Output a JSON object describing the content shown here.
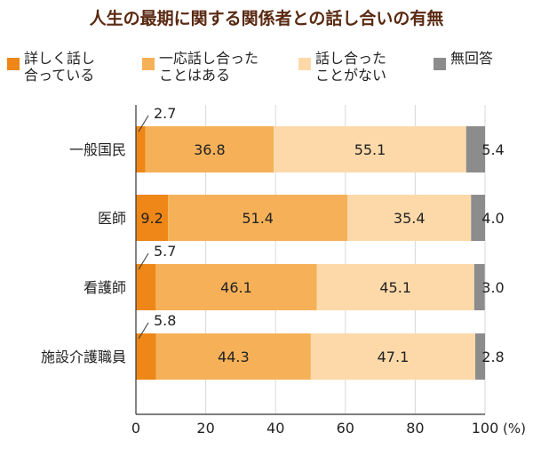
{
  "chart_data": {
    "type": "bar",
    "orientation": "horizontal",
    "stacked": true,
    "title": "人生の最期に関する関係者との話し合いの有無",
    "xlabel": "",
    "ylabel": "",
    "x_unit": "(%)",
    "xlim": [
      0,
      100
    ],
    "x_ticks": [
      "0",
      "20",
      "40",
      "60",
      "80",
      "100"
    ],
    "grid": true,
    "legend_position": "top",
    "categories": [
      "一般国民",
      "医師",
      "看護師",
      "施設介護職員"
    ],
    "series": [
      {
        "name": "詳しく話し\n合っている",
        "color": "#ee8717",
        "values": [
          2.7,
          9.2,
          5.7,
          5.8
        ]
      },
      {
        "name": "一応話し合った\nことはある",
        "color": "#f6b158",
        "values": [
          36.8,
          51.4,
          46.1,
          44.3
        ]
      },
      {
        "name": "話し合った\nことがない",
        "color": "#fdd9a9",
        "values": [
          55.1,
          35.4,
          45.1,
          47.1
        ]
      },
      {
        "name": "無回答",
        "color": "#8c8c8c",
        "values": [
          5.4,
          4.0,
          3.0,
          2.8
        ]
      }
    ]
  }
}
